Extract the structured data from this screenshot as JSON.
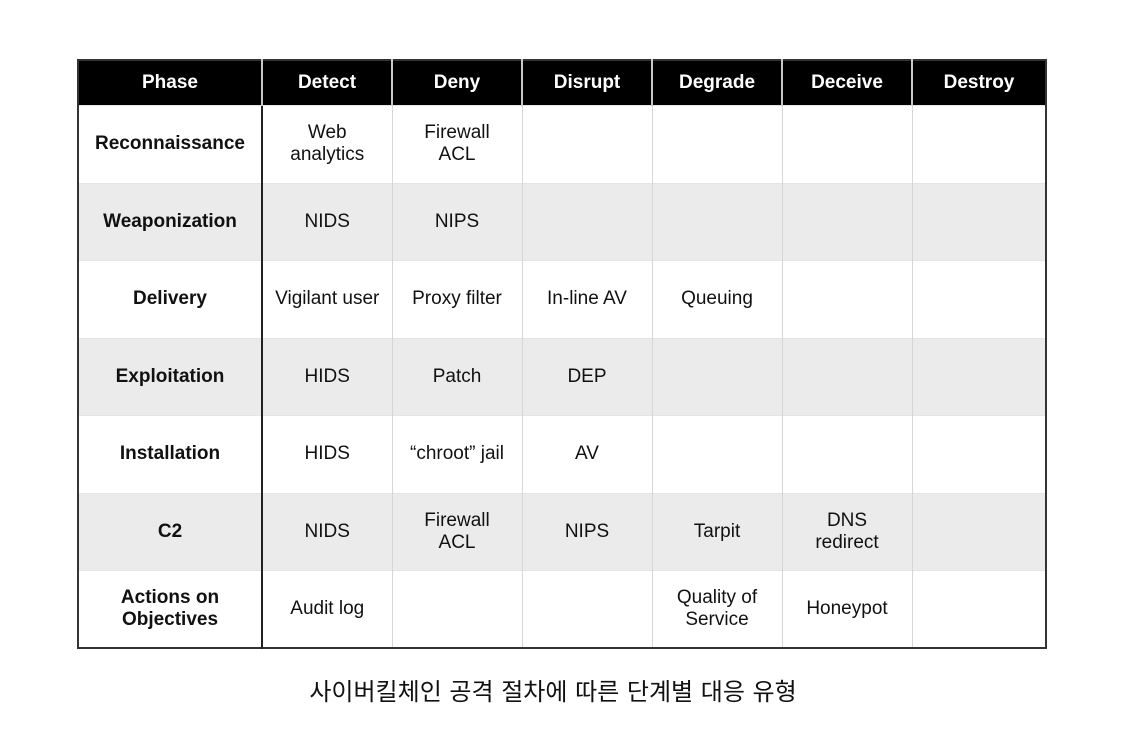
{
  "table": {
    "headers": [
      "Phase",
      "Detect",
      "Deny",
      "Disrupt",
      "Degrade",
      "Deceive",
      "Destroy"
    ],
    "rows": [
      {
        "phase": "Reconnaissance",
        "cells": [
          "Web\nanalytics",
          "Firewall\nACL",
          "",
          "",
          "",
          ""
        ]
      },
      {
        "phase": "Weaponization",
        "cells": [
          "NIDS",
          "NIPS",
          "",
          "",
          "",
          ""
        ]
      },
      {
        "phase": "Delivery",
        "cells": [
          "Vigilant user",
          "Proxy filter",
          "In-line AV",
          "Queuing",
          "",
          ""
        ]
      },
      {
        "phase": "Exploitation",
        "cells": [
          "HIDS",
          "Patch",
          "DEP",
          "",
          "",
          ""
        ]
      },
      {
        "phase": "Installation",
        "cells": [
          "HIDS",
          "“chroot” jail",
          "AV",
          "",
          "",
          ""
        ]
      },
      {
        "phase": "C2",
        "cells": [
          "NIDS",
          "Firewall\nACL",
          "NIPS",
          "Tarpit",
          "DNS\nredirect",
          ""
        ]
      },
      {
        "phase": "Actions on\nObjectives",
        "cells": [
          "Audit log",
          "",
          "",
          "Quality of\nService",
          "Honeypot",
          ""
        ]
      }
    ]
  },
  "caption": "사이버킬체인 공격 절차에 따른 단계별 대응 유형"
}
